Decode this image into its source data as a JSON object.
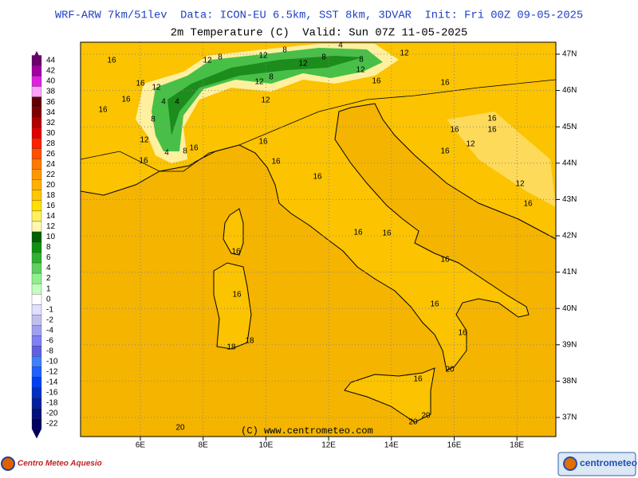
{
  "header": {
    "line1": "WRF-ARW 7km/51lev  Data: ICON-EU 6.5km, SST 8km, 3DVAR  Init: Fri 00Z 09-05-2025",
    "line2": "2m Temperature (C)  Valid: Sun 07Z 11-05-2025"
  },
  "colorbar": {
    "labels": [
      44,
      42,
      40,
      38,
      36,
      34,
      32,
      30,
      28,
      26,
      24,
      22,
      20,
      18,
      16,
      14,
      12,
      10,
      8,
      6,
      4,
      2,
      1,
      0,
      -1,
      -2,
      -4,
      -6,
      -8,
      -10,
      -12,
      -14,
      -16,
      -18,
      -20,
      -22
    ],
    "colors": [
      "#6a006a",
      "#a000a0",
      "#e020e0",
      "#ffa0ff",
      "#600000",
      "#800000",
      "#b00000",
      "#e00000",
      "#ff2000",
      "#ff5000",
      "#ff7800",
      "#ff9800",
      "#ffb000",
      "#ffc800",
      "#ffe000",
      "#fff060",
      "#fff8b0",
      "#006000",
      "#109010",
      "#30b030",
      "#60d060",
      "#90f090",
      "#c0ffc0",
      "#ffffff",
      "#e0e0ff",
      "#c0c0f0",
      "#a0a0f0",
      "#8080f0",
      "#6060e0",
      "#4080ff",
      "#2060ff",
      "#0040f0",
      "#0030c0",
      "#0020a0",
      "#001080",
      "#000060"
    ]
  },
  "map": {
    "lat_labels": [
      "47N",
      "46N",
      "45N",
      "44N",
      "43N",
      "42N",
      "41N",
      "40N",
      "39N",
      "38N",
      "37N"
    ],
    "lon_labels": [
      "6E",
      "8E",
      "10E",
      "12E",
      "14E",
      "16E",
      "18E"
    ],
    "contour_labels": [
      16,
      12,
      8,
      12,
      8,
      4,
      8,
      12,
      8,
      12,
      12,
      16,
      16,
      16,
      12,
      12,
      8,
      16,
      16,
      4,
      4,
      12,
      8,
      12,
      16,
      16,
      16,
      16,
      8,
      4,
      16,
      16,
      16,
      12,
      16,
      16,
      12,
      16,
      16,
      16,
      16,
      16,
      16,
      16,
      16,
      18,
      18,
      20,
      16,
      20,
      20,
      20
    ]
  },
  "footer": {
    "copyright": "(C) www.centrometeo.com",
    "logo_left": "Centro Meteo Aquesio",
    "logo_right": "centrometeo"
  }
}
